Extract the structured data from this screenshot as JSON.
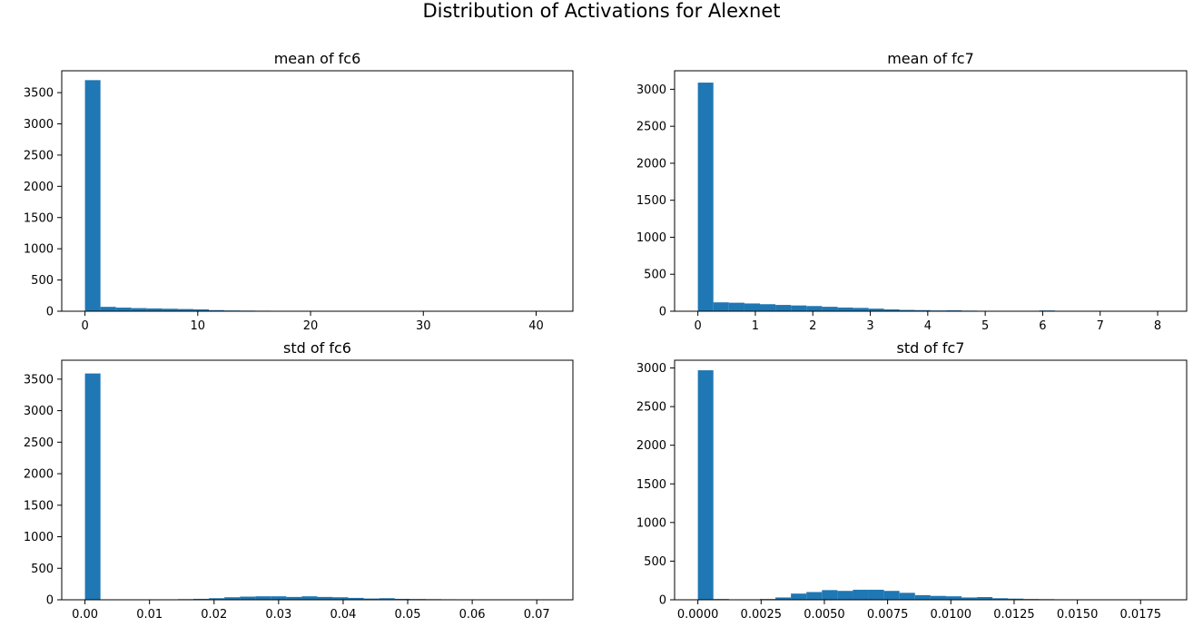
{
  "figure": {
    "suptitle": "Distribution of Activations for Alexnet",
    "bar_color": "#1f77b4"
  },
  "chart_data": [
    {
      "type": "bar",
      "title": "mean of fc6",
      "xlabel": "",
      "ylabel": "",
      "xlim": [
        -2.06,
        43.26
      ],
      "ylim": [
        0,
        3850
      ],
      "xticks": [
        0,
        10,
        20,
        30,
        40
      ],
      "yticks": [
        0,
        500,
        1000,
        1500,
        2000,
        2500,
        3000,
        3500
      ],
      "bin_start": 0.0,
      "bin_width": 1.373,
      "counts": [
        3700,
        70,
        58,
        50,
        45,
        40,
        35,
        30,
        18,
        12,
        10,
        8,
        7,
        6,
        5,
        4,
        3,
        2,
        1,
        1,
        0,
        0,
        0,
        0,
        0,
        0,
        0,
        0,
        0,
        1
      ]
    },
    {
      "type": "bar",
      "title": "mean of fc7",
      "xlabel": "",
      "ylabel": "",
      "xlim": [
        -0.405,
        8.505
      ],
      "ylim": [
        0,
        3250
      ],
      "xticks": [
        0,
        1,
        2,
        3,
        4,
        5,
        6,
        7,
        8
      ],
      "yticks": [
        0,
        500,
        1000,
        1500,
        2000,
        2500,
        3000
      ],
      "bin_start": 0.0,
      "bin_width": 0.27,
      "counts": [
        3090,
        120,
        115,
        105,
        95,
        85,
        78,
        70,
        60,
        50,
        45,
        35,
        25,
        18,
        15,
        10,
        12,
        8,
        6,
        5,
        3,
        2,
        10,
        1,
        0,
        0,
        0,
        0,
        0,
        1
      ]
    },
    {
      "type": "bar",
      "title": "std of fc6",
      "xlabel": "",
      "ylabel": "",
      "xlim": [
        -0.0036,
        0.0756
      ],
      "ylim": [
        0,
        3800
      ],
      "xticks": [
        0.0,
        0.01,
        0.02,
        0.03,
        0.04,
        0.05,
        0.06,
        0.07
      ],
      "xtick_labels": [
        "0.00",
        "0.01",
        "0.02",
        "0.03",
        "0.04",
        "0.05",
        "0.06",
        "0.07"
      ],
      "yticks": [
        0,
        500,
        1000,
        1500,
        2000,
        2500,
        3000,
        3500
      ],
      "bin_start": 0.0,
      "bin_width": 0.0024,
      "counts": [
        3590,
        0,
        0,
        0,
        0,
        5,
        10,
        15,
        25,
        40,
        50,
        55,
        55,
        45,
        55,
        45,
        40,
        30,
        20,
        25,
        15,
        12,
        10,
        8,
        6,
        5,
        3,
        2,
        1,
        1
      ]
    },
    {
      "type": "bar",
      "title": "std of fc7",
      "xlabel": "",
      "ylabel": "",
      "xlim": [
        -0.00092,
        0.01932
      ],
      "ylim": [
        0,
        3100
      ],
      "xticks": [
        0.0,
        0.0025,
        0.005,
        0.0075,
        0.01,
        0.0125,
        0.015,
        0.0175
      ],
      "xtick_labels": [
        "0.0000",
        "0.0025",
        "0.0050",
        "0.0075",
        "0.0100",
        "0.0125",
        "0.0150",
        "0.0175"
      ],
      "yticks": [
        0,
        500,
        1000,
        1500,
        2000,
        2500,
        3000
      ],
      "bin_start": 0.0,
      "bin_width": 0.000613,
      "counts": [
        2970,
        10,
        0,
        5,
        10,
        30,
        80,
        100,
        125,
        115,
        130,
        130,
        115,
        90,
        60,
        50,
        45,
        30,
        35,
        20,
        15,
        10,
        8,
        6,
        4,
        2,
        1,
        1,
        0,
        1
      ]
    }
  ]
}
